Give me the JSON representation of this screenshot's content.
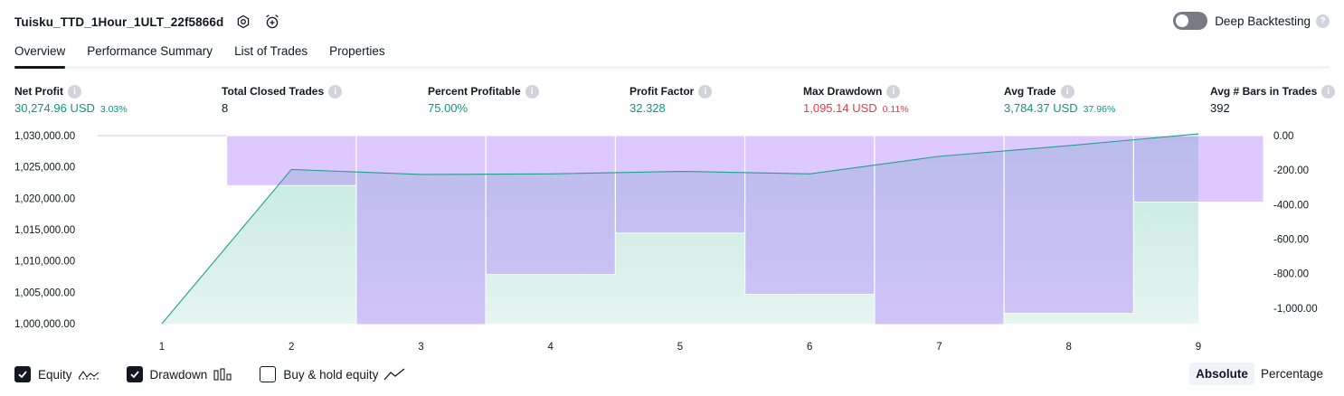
{
  "header": {
    "strategy_name": "Tuisku_TTD_1Hour_1ULT_22f5866d",
    "icons": [
      "settings-icon",
      "add-alert-icon"
    ]
  },
  "deep_backtesting": {
    "label": "Deep Backtesting",
    "enabled": false
  },
  "tabs": [
    {
      "label": "Overview",
      "active": true
    },
    {
      "label": "Performance Summary",
      "active": false
    },
    {
      "label": "List of Trades",
      "active": false
    },
    {
      "label": "Properties",
      "active": false
    }
  ],
  "metrics": {
    "net_profit": {
      "label": "Net Profit",
      "value": "30,274.96 USD",
      "pct": "3.03%"
    },
    "total_closed_trades": {
      "label": "Total Closed Trades",
      "value": "8"
    },
    "percent_profitable": {
      "label": "Percent Profitable",
      "value": "75.00%"
    },
    "profit_factor": {
      "label": "Profit Factor",
      "value": "32.328"
    },
    "max_drawdown": {
      "label": "Max Drawdown",
      "value": "1,095.14 USD",
      "pct": "0.11%"
    },
    "avg_trade": {
      "label": "Avg Trade",
      "value": "3,784.37 USD",
      "pct": "37.96%"
    },
    "avg_bars": {
      "label": "Avg # Bars in Trades",
      "value": "392"
    }
  },
  "chart_data": {
    "type": "line",
    "x": [
      1,
      2,
      3,
      4,
      5,
      6,
      7,
      8,
      9
    ],
    "series": [
      {
        "name": "Equity",
        "type": "area",
        "values": [
          1000000,
          1024600,
          1023800,
          1023900,
          1024300,
          1023900,
          1026700,
          1028400,
          1030275
        ],
        "color": "#089981"
      },
      {
        "name": "Drawdown",
        "type": "bar",
        "values": [
          0,
          -290,
          -1095,
          -805,
          -565,
          -920,
          -1095,
          -1030,
          -385
        ],
        "color": "#b39ddb"
      }
    ],
    "left_axis": {
      "ticks": [
        "1,030,000.00",
        "1,025,000.00",
        "1,020,000.00",
        "1,015,000.00",
        "1,010,000.00",
        "1,005,000.00",
        "1,000,000.00"
      ],
      "ylim": [
        1000000,
        1030000
      ]
    },
    "right_axis": {
      "ticks": [
        "0.00",
        "-200.00",
        "-400.00",
        "-600.00",
        "-800.00",
        "-1,000.00"
      ],
      "ylim": [
        -1095,
        0
      ]
    },
    "x_ticks": [
      "1",
      "2",
      "3",
      "4",
      "5",
      "6",
      "7",
      "8",
      "9"
    ]
  },
  "legend": [
    {
      "label": "Equity",
      "checked": true,
      "icon": "equity-line-icon"
    },
    {
      "label": "Drawdown",
      "checked": true,
      "icon": "drawdown-bars-icon"
    },
    {
      "label": "Buy & hold equity",
      "checked": false,
      "icon": "buy-hold-line-icon"
    }
  ],
  "view_mode": {
    "absolute": {
      "label": "Absolute",
      "active": true
    },
    "percentage": {
      "label": "Percentage",
      "active": false
    }
  },
  "colors": {
    "positive": "#089981",
    "negative": "#f23645",
    "drawdown_fill": "#b39ddb",
    "equity_fill": "#dff3ee"
  }
}
